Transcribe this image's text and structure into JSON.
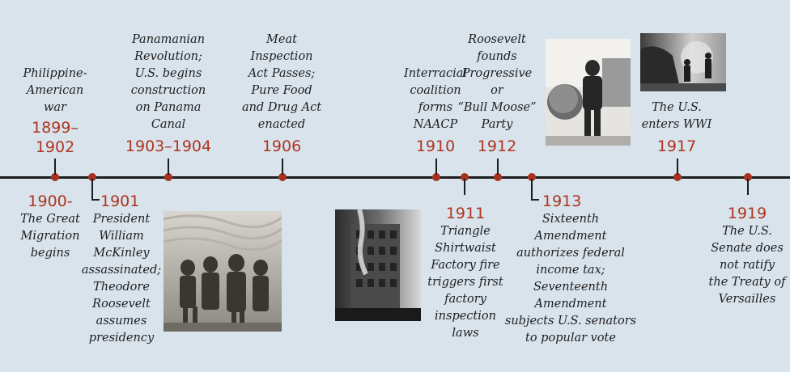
{
  "events": {
    "e1899": {
      "year": "1899–\n1902",
      "text": "Philippine-\nAmerican\nwar"
    },
    "e1900": {
      "year": "1900-",
      "text": "The Great\nMigration\nbegins"
    },
    "e1901": {
      "year": "1901",
      "text": "President\nWilliam\nMcKinley\nassassinated;\nTheodore\nRoosevelt\nassumes\npresidency"
    },
    "e1903": {
      "year": "1903–1904",
      "text": "Panamanian\nRevolution;\nU.S. begins\nconstruction\non Panama\nCanal"
    },
    "e1906": {
      "year": "1906",
      "text": "Meat\nInspection\nAct Passes;\nPure Food\nand Drug Act\nenacted"
    },
    "e1910": {
      "year": "1910",
      "text": "Interracial\ncoalition\nforms\nNAACP"
    },
    "e1911": {
      "year": "1911",
      "text": "Triangle\nShirtwaist\nFactory fire\ntriggers first\nfactory\ninspection\nlaws"
    },
    "e1912": {
      "year": "1912",
      "text": "Roosevelt\nfounds\nProgressive\nor\n“Bull Moose”\nParty"
    },
    "e1913": {
      "year": "1913",
      "text": "Sixteenth\nAmendment\nauthorizes federal\nincome tax;\nSeventeenth\nAmendment\nsubjects U.S. senators\nto popular vote"
    },
    "e1917": {
      "year": "1917",
      "text": "The U.S.\nenters WWI"
    },
    "e1919": {
      "year": "1919",
      "text": "The U.S.\nSenate does\nnot ratify\nthe Treaty of\nVersailles"
    }
  },
  "colors": {
    "background": "#d8e3ec",
    "year": "#b0351f",
    "dot": "#a8321f",
    "line": "#1c1c1c"
  },
  "photos": [
    "mckinley-assassination-engraving",
    "triangle-factory-fire-photo",
    "roosevelt-portrait-photo",
    "wwi-soldiers-photo"
  ]
}
